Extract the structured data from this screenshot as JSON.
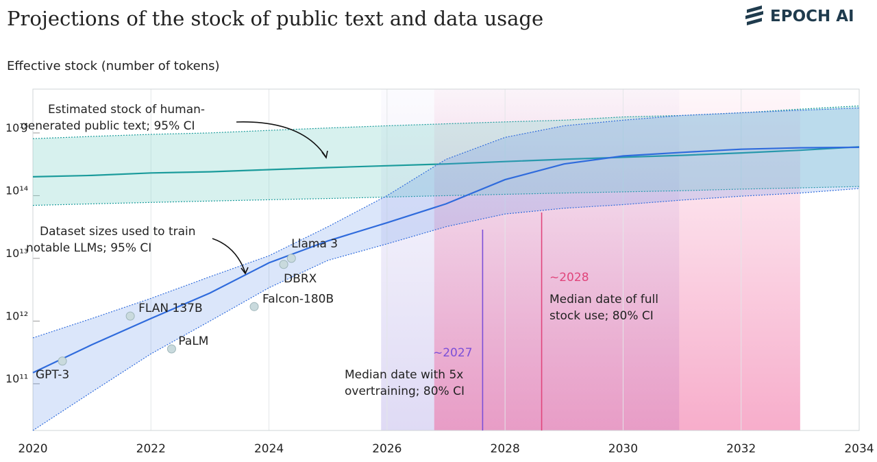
{
  "chart_data": {
    "type": "line",
    "title": "Projections of the stock of public text and data usage",
    "brand": "EPOCH AI",
    "y_label": "Effective stock (number of tokens)",
    "log_y": true,
    "grid": true,
    "xlim": [
      2020,
      2034
    ],
    "xticks": [
      2020,
      2022,
      2024,
      2026,
      2028,
      2030,
      2032,
      2034
    ],
    "ylim": [
      18000000000.0,
      5000000000000000.0
    ],
    "yticks": [
      {
        "value": 100000000000.0,
        "label": "10¹¹"
      },
      {
        "value": 1000000000000.0,
        "label": "10¹²"
      },
      {
        "value": 10000000000000.0,
        "label": "10¹³"
      },
      {
        "value": 100000000000000.0,
        "label": "10¹⁴"
      },
      {
        "value": 1000000000000000.0,
        "label": "10¹⁵"
      }
    ],
    "x": [
      2020,
      2021,
      2022,
      2023,
      2024,
      2025,
      2026,
      2027,
      2028,
      2029,
      2030,
      2031,
      2032,
      2033,
      2034
    ],
    "series": [
      {
        "color": "#1a9b9b",
        "values": [
          200000000000000.0,
          210000000000000.0,
          230000000000000.0,
          240000000000000.0,
          260000000000000.0,
          280000000000000.0,
          300000000000000.0,
          320000000000000.0,
          350000000000000.0,
          380000000000000.0,
          410000000000000.0,
          440000000000000.0,
          480000000000000.0,
          530000000000000.0,
          600000000000000.0
        ],
        "upper": [
          810000000000000.0,
          880000000000000.0,
          950000000000000.0,
          1000000000000000.0,
          1100000000000000.0,
          1200000000000000.0,
          1300000000000000.0,
          1400000000000000.0,
          1500000000000000.0,
          1600000000000000.0,
          1800000000000000.0,
          1900000000000000.0,
          2100000000000000.0,
          2400000000000000.0,
          2700000000000000.0
        ],
        "lower": [
          70000000000000.0,
          74000000000000.0,
          78000000000000.0,
          82000000000000.0,
          86000000000000.0,
          90000000000000.0,
          95000000000000.0,
          100000000000000.0,
          105000000000000.0,
          110000000000000.0,
          115000000000000.0,
          120000000000000.0,
          127000000000000.0,
          133000000000000.0,
          140000000000000.0
        ]
      },
      {
        "color": "#2f6bdc",
        "values": [
          150000000000.0,
          420000000000.0,
          1100000000000.0,
          2800000000000.0,
          8500000000000.0,
          19000000000000.0,
          37000000000000.0,
          74000000000000.0,
          180000000000000.0,
          320000000000000.0,
          430000000000000.0,
          490000000000000.0,
          550000000000000.0,
          580000000000000.0,
          590000000000000.0
        ],
        "upper": [
          540000000000.0,
          1100000000000.0,
          2300000000000.0,
          5100000000000.0,
          11000000000000.0,
          32000000000000.0,
          100000000000000.0,
          380000000000000.0,
          850000000000000.0,
          1300000000000000.0,
          1600000000000000.0,
          1900000000000000.0,
          2100000000000000.0,
          2300000000000000.0,
          2500000000000000.0
        ],
        "lower": [
          18000000000.0,
          74000000000.0,
          300000000000.0,
          1000000000000.0,
          3400000000000.0,
          9300000000000.0,
          17000000000000.0,
          32000000000000.0,
          51000000000000.0,
          63000000000000.0,
          72000000000000.0,
          85000000000000.0,
          98000000000000.0,
          110000000000000.0,
          130000000000000.0
        ]
      }
    ],
    "points": {
      "names": [
        "GPT-3",
        "FLAN 137B",
        "PaLM",
        "Falcon-180B",
        "DBRX",
        "Llama 3"
      ],
      "x": [
        2020.5,
        2021.65,
        2022.35,
        2023.75,
        2024.25,
        2024.38
      ],
      "values": [
        230000000000.0,
        1200000000000.0,
        360000000000.0,
        1700000000000.0,
        8000000000000.0,
        10000000000000.0
      ]
    },
    "ranges": [
      {
        "label": "~2027",
        "text": [
          "Median date with 5x",
          "overtraining; 80% CI"
        ],
        "median": 2027.62,
        "ci": [
          2025.9,
          2030.95
        ],
        "color": "#7b4fd8"
      },
      {
        "label": "~2028",
        "text": [
          "Median date of full",
          "stock use; 80% CI"
        ],
        "median": 2028.62,
        "ci": [
          2026.8,
          2033.0
        ],
        "color": "#e0457b"
      }
    ],
    "annotations": [
      {
        "lines": [
          "Estimated stock of human-",
          "generated public text; 95% CI"
        ]
      },
      {
        "lines": [
          "Dataset sizes used to train",
          "notable LLMs; 95% CI"
        ]
      }
    ]
  }
}
